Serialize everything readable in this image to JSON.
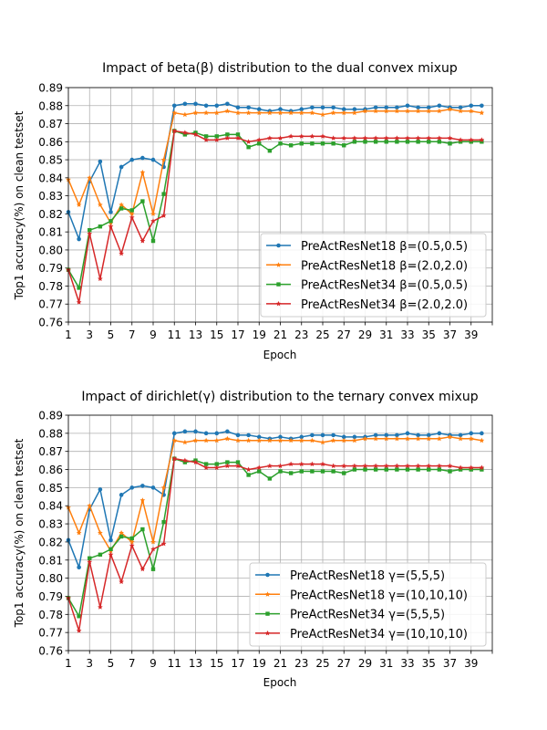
{
  "chart_data": [
    {
      "type": "line",
      "title": "Impact of beta(β) distribution to the dual convex mixup",
      "xlabel": "Epoch",
      "ylabel": "Top1 accuracy(%) on clean testset",
      "xlim": [
        1,
        41
      ],
      "ylim": [
        0.76,
        0.89
      ],
      "x_ticks": [
        "1",
        "3",
        "5",
        "7",
        "9",
        "11",
        "13",
        "15",
        "17",
        "19",
        "21",
        "23",
        "25",
        "27",
        "29",
        "31",
        "33",
        "35",
        "37",
        "39"
      ],
      "y_ticks": [
        "0.76",
        "0.77",
        "0.78",
        "0.79",
        "0.80",
        "0.81",
        "0.82",
        "0.83",
        "0.84",
        "0.85",
        "0.86",
        "0.87",
        "0.88",
        "0.89"
      ],
      "grid": true,
      "legend_position": "lower right",
      "x": [
        1,
        2,
        3,
        4,
        5,
        6,
        7,
        8,
        9,
        10,
        11,
        12,
        13,
        14,
        15,
        16,
        17,
        18,
        19,
        20,
        21,
        22,
        23,
        24,
        25,
        26,
        27,
        28,
        29,
        30,
        31,
        32,
        33,
        34,
        35,
        36,
        37,
        38,
        39,
        40
      ],
      "series": [
        {
          "name": "PreActResNet18 β=(0.5,0.5)",
          "color": "#1f77b4",
          "marker": "circle",
          "values": [
            0.821,
            0.806,
            0.838,
            0.849,
            0.821,
            0.846,
            0.85,
            0.851,
            0.85,
            0.846,
            0.88,
            0.881,
            0.881,
            0.88,
            0.88,
            0.881,
            0.879,
            0.879,
            0.878,
            0.877,
            0.878,
            0.877,
            0.878,
            0.879,
            0.879,
            0.879,
            0.878,
            0.878,
            0.878,
            0.879,
            0.879,
            0.879,
            0.88,
            0.879,
            0.879,
            0.88,
            0.879,
            0.879,
            0.88,
            0.88
          ]
        },
        {
          "name": "PreActResNet18 β=(2.0,2.0)",
          "color": "#ff7f0e",
          "marker": "star",
          "values": [
            0.839,
            0.825,
            0.84,
            0.825,
            0.815,
            0.825,
            0.82,
            0.843,
            0.82,
            0.85,
            0.876,
            0.875,
            0.876,
            0.876,
            0.876,
            0.877,
            0.876,
            0.876,
            0.876,
            0.876,
            0.876,
            0.876,
            0.876,
            0.876,
            0.875,
            0.876,
            0.876,
            0.876,
            0.877,
            0.877,
            0.877,
            0.877,
            0.877,
            0.877,
            0.877,
            0.877,
            0.878,
            0.877,
            0.877,
            0.876
          ]
        },
        {
          "name": "PreActResNet34 β=(0.5,0.5)",
          "color": "#2ca02c",
          "marker": "square",
          "values": [
            0.789,
            0.779,
            0.811,
            0.813,
            0.816,
            0.823,
            0.822,
            0.827,
            0.805,
            0.831,
            0.866,
            0.864,
            0.865,
            0.863,
            0.863,
            0.864,
            0.864,
            0.857,
            0.859,
            0.855,
            0.859,
            0.858,
            0.859,
            0.859,
            0.859,
            0.859,
            0.858,
            0.86,
            0.86,
            0.86,
            0.86,
            0.86,
            0.86,
            0.86,
            0.86,
            0.86,
            0.859,
            0.86,
            0.86,
            0.86
          ]
        },
        {
          "name": "PreActResNet34 β=(2.0,2.0)",
          "color": "#d62728",
          "marker": "star",
          "values": [
            0.789,
            0.771,
            0.809,
            0.784,
            0.813,
            0.798,
            0.818,
            0.805,
            0.816,
            0.819,
            0.866,
            0.865,
            0.864,
            0.861,
            0.861,
            0.862,
            0.862,
            0.86,
            0.861,
            0.862,
            0.862,
            0.863,
            0.863,
            0.863,
            0.863,
            0.862,
            0.862,
            0.862,
            0.862,
            0.862,
            0.862,
            0.862,
            0.862,
            0.862,
            0.862,
            0.862,
            0.862,
            0.861,
            0.861,
            0.861
          ]
        }
      ]
    },
    {
      "type": "line",
      "title": "Impact of dirichlet(γ) distribution to the ternary convex mixup",
      "xlabel": "Epoch",
      "ylabel": "Top1 accuracy(%) on clean testset",
      "xlim": [
        1,
        41
      ],
      "ylim": [
        0.76,
        0.89
      ],
      "x_ticks": [
        "1",
        "3",
        "5",
        "7",
        "9",
        "11",
        "13",
        "15",
        "17",
        "19",
        "21",
        "23",
        "25",
        "27",
        "29",
        "31",
        "33",
        "35",
        "37",
        "39"
      ],
      "y_ticks": [
        "0.76",
        "0.77",
        "0.78",
        "0.79",
        "0.80",
        "0.81",
        "0.82",
        "0.83",
        "0.84",
        "0.85",
        "0.86",
        "0.87",
        "0.88",
        "0.89"
      ],
      "grid": true,
      "legend_position": "lower right",
      "x": [
        1,
        2,
        3,
        4,
        5,
        6,
        7,
        8,
        9,
        10,
        11,
        12,
        13,
        14,
        15,
        16,
        17,
        18,
        19,
        20,
        21,
        22,
        23,
        24,
        25,
        26,
        27,
        28,
        29,
        30,
        31,
        32,
        33,
        34,
        35,
        36,
        37,
        38,
        39,
        40
      ],
      "series": [
        {
          "name": "PreActResNet18 γ=(5,5,5)",
          "color": "#1f77b4",
          "marker": "circle",
          "values": [
            0.821,
            0.806,
            0.838,
            0.849,
            0.821,
            0.846,
            0.85,
            0.851,
            0.85,
            0.846,
            0.88,
            0.881,
            0.881,
            0.88,
            0.88,
            0.881,
            0.879,
            0.879,
            0.878,
            0.877,
            0.878,
            0.877,
            0.878,
            0.879,
            0.879,
            0.879,
            0.878,
            0.878,
            0.878,
            0.879,
            0.879,
            0.879,
            0.88,
            0.879,
            0.879,
            0.88,
            0.879,
            0.879,
            0.88,
            0.88
          ]
        },
        {
          "name": "PreActResNet18 γ=(10,10,10)",
          "color": "#ff7f0e",
          "marker": "star",
          "values": [
            0.839,
            0.825,
            0.84,
            0.825,
            0.815,
            0.825,
            0.82,
            0.843,
            0.82,
            0.85,
            0.876,
            0.875,
            0.876,
            0.876,
            0.876,
            0.877,
            0.876,
            0.876,
            0.876,
            0.876,
            0.876,
            0.876,
            0.876,
            0.876,
            0.875,
            0.876,
            0.876,
            0.876,
            0.877,
            0.877,
            0.877,
            0.877,
            0.877,
            0.877,
            0.877,
            0.877,
            0.878,
            0.877,
            0.877,
            0.876
          ]
        },
        {
          "name": "PreActResNet34 γ=(5,5,5)",
          "color": "#2ca02c",
          "marker": "square",
          "values": [
            0.789,
            0.779,
            0.811,
            0.813,
            0.816,
            0.823,
            0.822,
            0.827,
            0.805,
            0.831,
            0.866,
            0.864,
            0.865,
            0.863,
            0.863,
            0.864,
            0.864,
            0.857,
            0.859,
            0.855,
            0.859,
            0.858,
            0.859,
            0.859,
            0.859,
            0.859,
            0.858,
            0.86,
            0.86,
            0.86,
            0.86,
            0.86,
            0.86,
            0.86,
            0.86,
            0.86,
            0.859,
            0.86,
            0.86,
            0.86
          ]
        },
        {
          "name": "PreActResNet34 γ=(10,10,10)",
          "color": "#d62728",
          "marker": "star",
          "values": [
            0.789,
            0.771,
            0.809,
            0.784,
            0.813,
            0.798,
            0.818,
            0.805,
            0.816,
            0.819,
            0.866,
            0.865,
            0.864,
            0.861,
            0.861,
            0.862,
            0.862,
            0.86,
            0.861,
            0.862,
            0.862,
            0.863,
            0.863,
            0.863,
            0.863,
            0.862,
            0.862,
            0.862,
            0.862,
            0.862,
            0.862,
            0.862,
            0.862,
            0.862,
            0.862,
            0.862,
            0.862,
            0.861,
            0.861,
            0.861
          ]
        }
      ]
    }
  ]
}
